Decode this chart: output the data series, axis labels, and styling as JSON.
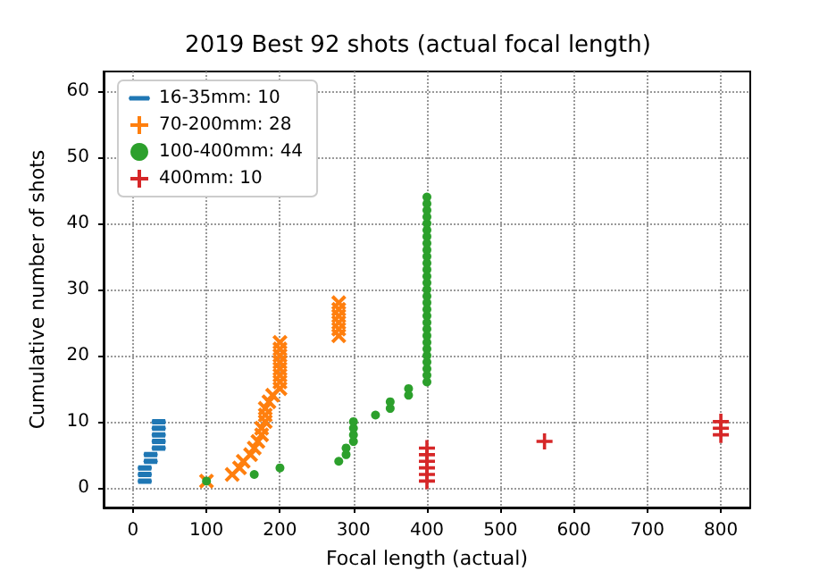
{
  "chart_data": {
    "type": "scatter",
    "title": "2019 Best 92 shots (actual focal length)",
    "xlabel": "Focal length (actual)",
    "ylabel": "Cumulative number of shots",
    "xlim": [
      -40,
      840
    ],
    "xticks": [
      0,
      100,
      200,
      300,
      400,
      500,
      600,
      700,
      800
    ],
    "ylim": [
      -3,
      63
    ],
    "yticks": [
      0,
      10,
      20,
      30,
      40,
      50,
      60
    ],
    "grid": true,
    "legend": "top left",
    "series": [
      {
        "name": "16-35mm: 10",
        "color": "#1f77b4",
        "x": [
          16,
          16,
          16,
          24,
          24,
          35,
          35,
          35,
          35,
          35
        ],
        "values": [
          1,
          2,
          3,
          4,
          5,
          6,
          7,
          8,
          9,
          10
        ]
      },
      {
        "name": "70-200mm: 28",
        "color": "#ff7f0e",
        "x": [
          100,
          135,
          145,
          150,
          160,
          165,
          170,
          175,
          175,
          180,
          180,
          180,
          185,
          190,
          200,
          200,
          200,
          200,
          200,
          200,
          200,
          200,
          280,
          280,
          280,
          280,
          280,
          280
        ],
        "values": [
          1,
          2,
          3,
          4,
          5,
          6,
          7,
          8,
          9,
          10,
          11,
          12,
          13,
          14,
          15,
          16,
          17,
          18,
          19,
          20,
          21,
          22,
          23,
          24,
          25,
          26,
          27,
          28
        ]
      },
      {
        "name": "100-400mm: 44",
        "color": "#2ca02c",
        "marker": "circle",
        "x": [
          100,
          165,
          200,
          280,
          290,
          290,
          300,
          300,
          300,
          300,
          330,
          350,
          350,
          375,
          375,
          400,
          400,
          400,
          400,
          400,
          400,
          400,
          400,
          400,
          400,
          400,
          400,
          400,
          400,
          400,
          400,
          400,
          400,
          400,
          400,
          400,
          400,
          400,
          400,
          400,
          400,
          400,
          400,
          400
        ],
        "values": [
          1,
          2,
          3,
          4,
          5,
          6,
          7,
          8,
          9,
          10,
          11,
          12,
          13,
          14,
          15,
          16,
          17,
          18,
          19,
          20,
          21,
          22,
          23,
          24,
          25,
          26,
          27,
          28,
          29,
          30,
          31,
          32,
          33,
          34,
          35,
          36,
          37,
          38,
          39,
          40,
          41,
          42,
          43,
          44
        ]
      },
      {
        "name": "400mm: 10",
        "color": "#d62728",
        "marker": "cross",
        "x": [
          400,
          400,
          400,
          400,
          400,
          400,
          560,
          800,
          800,
          800
        ],
        "values": [
          1,
          2,
          3,
          4,
          5,
          6,
          7,
          8,
          9,
          10
        ]
      }
    ]
  }
}
